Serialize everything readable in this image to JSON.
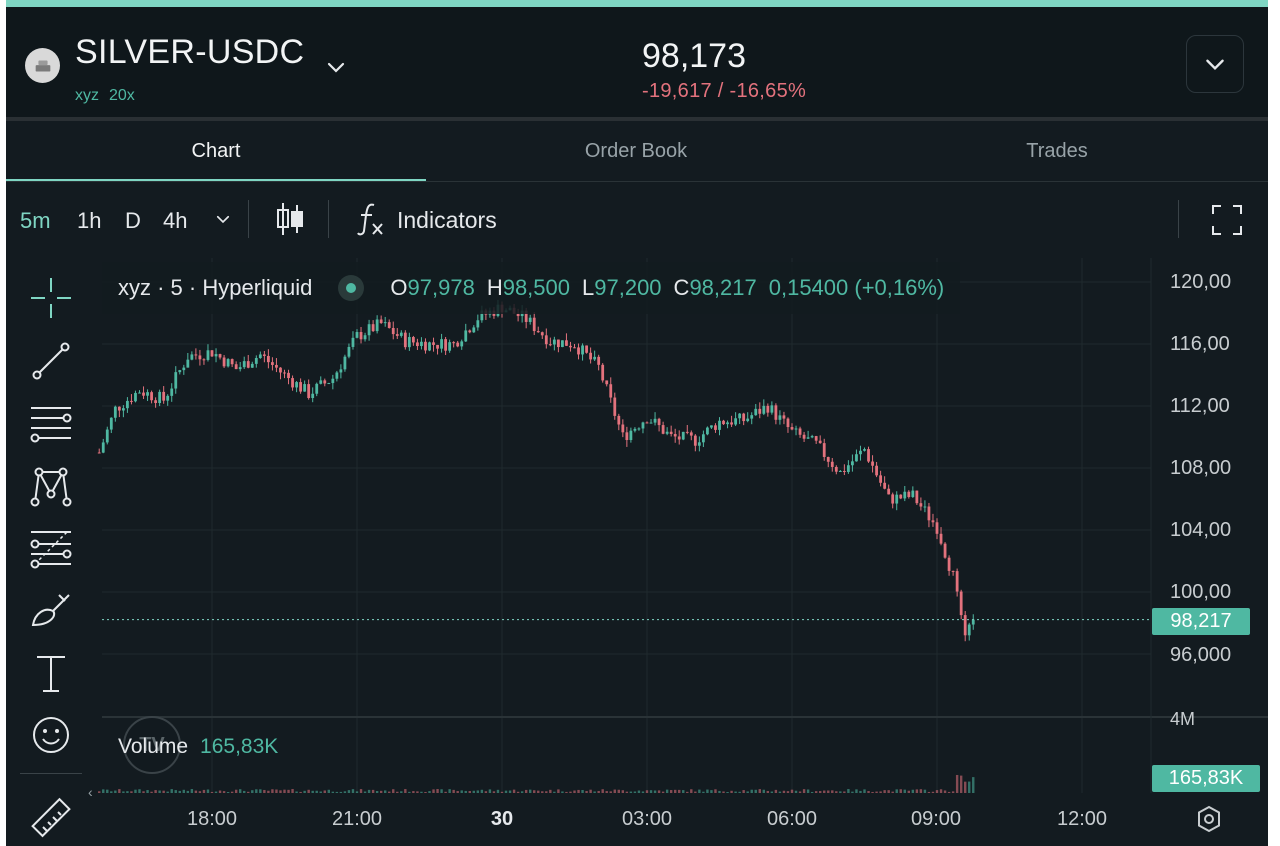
{
  "header": {
    "pair_name": "SILVER-USDC",
    "dex": "xyz",
    "leverage": "20x",
    "price": "98,173",
    "change": "-19,617 / -16,65%"
  },
  "tabs": [
    {
      "label": "Chart",
      "active": true
    },
    {
      "label": "Order Book",
      "active": false
    },
    {
      "label": "Trades",
      "active": false
    }
  ],
  "toolbar": {
    "timeframes": [
      "5m",
      "1h",
      "D",
      "4h"
    ],
    "active_timeframe": "5m",
    "indicators_label": "Indicators"
  },
  "legend": {
    "symbol": "xyz · 5 · Hyperliquid",
    "open_key": "O",
    "open": "97,978",
    "high_key": "H",
    "high": "98,500",
    "low_key": "L",
    "low": "97,200",
    "close_key": "C",
    "close": "98,217",
    "change": "0,15400 (+0,16%)"
  },
  "price_axis": [
    "120,00",
    "116,00",
    "112,00",
    "108,00",
    "104,00",
    "100,00",
    "96,000"
  ],
  "last_price_tag": "98,217",
  "volume": {
    "name": "Volume",
    "value": "165,83K",
    "axis_label": "4M",
    "tag": "165,83K"
  },
  "time_axis": [
    {
      "label": "18:00",
      "bold": false
    },
    {
      "label": "21:00",
      "bold": false
    },
    {
      "label": "30",
      "bold": true
    },
    {
      "label": "03:00",
      "bold": false
    },
    {
      "label": "06:00",
      "bold": false
    },
    {
      "label": "09:00",
      "bold": false
    },
    {
      "label": "12:00",
      "bold": false
    }
  ],
  "tv_logo": "TV",
  "scroll_left_label": "‹",
  "colors": {
    "accent": "#7fd6c3",
    "up": "#4fb8a2",
    "down": "#e3727d",
    "background": "#131b20"
  },
  "chart_data": {
    "type": "candlestick",
    "interval": "5m",
    "ylim": [
      93,
      121
    ],
    "xlim": [
      "29 15:40",
      "30 12:00"
    ],
    "y_ticks": [
      120,
      116,
      112,
      108,
      104,
      100,
      96
    ],
    "x_ticks": [
      "18:00",
      "21:00",
      "30",
      "03:00",
      "06:00",
      "09:00",
      "12:00"
    ],
    "last_price": 98.217,
    "ohlc_path_close": [
      {
        "t": "29 15:40",
        "c": 109.0
      },
      {
        "t": "29 16:00",
        "c": 111.8
      },
      {
        "t": "29 16:30",
        "c": 113.0
      },
      {
        "t": "29 17:00",
        "c": 112.4
      },
      {
        "t": "29 17:30",
        "c": 115.2
      },
      {
        "t": "29 18:00",
        "c": 115.5
      },
      {
        "t": "29 18:30",
        "c": 114.4
      },
      {
        "t": "29 19:00",
        "c": 115.3
      },
      {
        "t": "29 19:30",
        "c": 114.0
      },
      {
        "t": "29 20:00",
        "c": 112.8
      },
      {
        "t": "29 20:30",
        "c": 113.8
      },
      {
        "t": "29 21:00",
        "c": 116.5
      },
      {
        "t": "29 21:30",
        "c": 117.3
      },
      {
        "t": "29 22:00",
        "c": 116.2
      },
      {
        "t": "29 22:30",
        "c": 116.0
      },
      {
        "t": "29 23:00",
        "c": 116.0
      },
      {
        "t": "29 23:30",
        "c": 117.7
      },
      {
        "t": "30 00:00",
        "c": 118.4
      },
      {
        "t": "30 00:30",
        "c": 117.6
      },
      {
        "t": "30 01:00",
        "c": 116.2
      },
      {
        "t": "30 01:30",
        "c": 116.0
      },
      {
        "t": "30 02:00",
        "c": 114.5
      },
      {
        "t": "30 02:30",
        "c": 110.0
      },
      {
        "t": "30 03:00",
        "c": 111.3
      },
      {
        "t": "30 03:30",
        "c": 110.0
      },
      {
        "t": "30 04:00",
        "c": 109.8
      },
      {
        "t": "30 04:30",
        "c": 111.0
      },
      {
        "t": "30 05:00",
        "c": 111.1
      },
      {
        "t": "30 05:30",
        "c": 112.0
      },
      {
        "t": "30 06:00",
        "c": 110.3
      },
      {
        "t": "30 06:30",
        "c": 109.5
      },
      {
        "t": "30 07:00",
        "c": 107.7
      },
      {
        "t": "30 07:30",
        "c": 109.2
      },
      {
        "t": "30 08:00",
        "c": 106.0
      },
      {
        "t": "30 08:30",
        "c": 106.2
      },
      {
        "t": "30 09:00",
        "c": 104.2
      },
      {
        "t": "30 09:20",
        "c": 101.0
      },
      {
        "t": "30 09:35",
        "c": 96.8
      },
      {
        "t": "30 09:45",
        "c": 98.217
      }
    ],
    "volume_max_label": "4M",
    "current_volume": "165,83K"
  }
}
